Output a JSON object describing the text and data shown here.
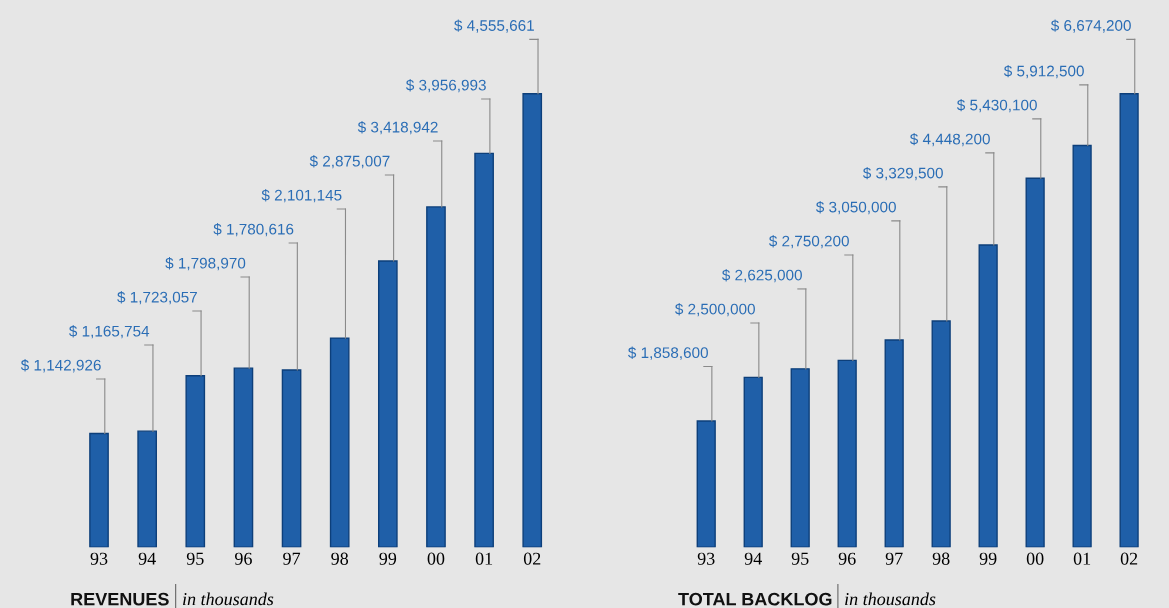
{
  "chart_data": [
    {
      "type": "bar",
      "title": "REVENUES",
      "subtitle": "in thousands",
      "categories": [
        "93",
        "94",
        "95",
        "96",
        "97",
        "98",
        "99",
        "00",
        "01",
        "02"
      ],
      "series": [
        {
          "color": "#1f5fa8",
          "values": [
            1142926,
            1165754,
            1723057,
            1798970,
            1780616,
            2101145,
            2875007,
            3418942,
            3956993,
            4555661
          ],
          "value_labels": [
            "$ 1,142,926",
            "$ 1,165,754",
            "$ 1,723,057",
            "$ 1,798,970",
            "$ 1,780,616",
            "$ 2,101,145",
            "$ 2,875,007",
            "$ 3,418,942",
            "$ 3,956,993",
            "$ 4,555,661"
          ]
        }
      ],
      "grid": false,
      "legend": false
    },
    {
      "type": "bar",
      "title": "TOTAL BACKLOG",
      "subtitle": "in thousands",
      "categories": [
        "93",
        "94",
        "95",
        "96",
        "97",
        "98",
        "99",
        "00",
        "01",
        "02"
      ],
      "series": [
        {
          "color": "#1f5fa8",
          "values": [
            1858600,
            2500000,
            2625000,
            2750200,
            3050000,
            3329500,
            4448200,
            5430100,
            5912500,
            6674200
          ],
          "value_labels": [
            "$ 1,858,600",
            "$ 2,500,000",
            "$ 2,625,000",
            "$ 2,750,200",
            "$ 3,050,000",
            "$ 3,329,500",
            "$ 4,448,200",
            "$ 5,430,100",
            "$ 5,912,500",
            "$ 6,674,200"
          ]
        }
      ],
      "grid": false,
      "legend": false
    }
  ]
}
